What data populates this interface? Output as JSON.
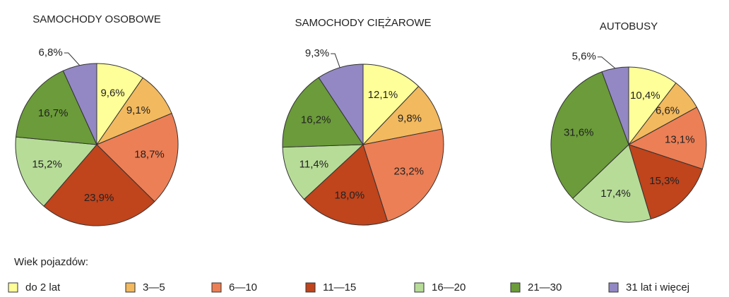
{
  "chart_data": [
    {
      "type": "pie",
      "title": "SAMOCHODY OSOBOWE",
      "categories": [
        "do 2 lat",
        "3—5",
        "6—10",
        "11—15",
        "16—20",
        "21—30",
        "31 lat i więcej"
      ],
      "values": [
        9.6,
        9.1,
        18.7,
        23.9,
        15.2,
        16.7,
        6.8
      ],
      "value_labels": [
        "9,6%",
        "9,1%",
        "18,7%",
        "23,9%",
        "15,2%",
        "16,7%",
        "6,8%"
      ],
      "colors": [
        "#ffff99",
        "#f2b95e",
        "#ec7f56",
        "#c0441c",
        "#b7dc98",
        "#6b9b3a",
        "#9388c4"
      ]
    },
    {
      "type": "pie",
      "title": "SAMOCHODY CIĘŻAROWE",
      "categories": [
        "do 2 lat",
        "3—5",
        "6—10",
        "11—15",
        "16—20",
        "21—30",
        "31 lat i więcej"
      ],
      "values": [
        12.1,
        9.8,
        23.2,
        18.0,
        11.4,
        16.2,
        9.3
      ],
      "value_labels": [
        "12,1%",
        "9,8%",
        "23,2%",
        "18,0%",
        "11,4%",
        "16,2%",
        "9,3%"
      ],
      "colors": [
        "#ffff99",
        "#f2b95e",
        "#ec7f56",
        "#c0441c",
        "#b7dc98",
        "#6b9b3a",
        "#9388c4"
      ]
    },
    {
      "type": "pie",
      "title": "AUTOBUSY",
      "categories": [
        "do 2 lat",
        "3—5",
        "6—10",
        "11—15",
        "16—20",
        "21—30",
        "31 lat i więcej"
      ],
      "values": [
        10.4,
        6.6,
        13.1,
        15.3,
        17.4,
        31.6,
        5.6
      ],
      "value_labels": [
        "10,4%",
        "6,6%",
        "13,1%",
        "15,3%",
        "17,4%",
        "31,6%",
        "5,6%"
      ],
      "colors": [
        "#ffff99",
        "#f2b95e",
        "#ec7f56",
        "#c0441c",
        "#b7dc98",
        "#6b9b3a",
        "#9388c4"
      ]
    }
  ],
  "legend_title": "Wiek pojazdów:"
}
